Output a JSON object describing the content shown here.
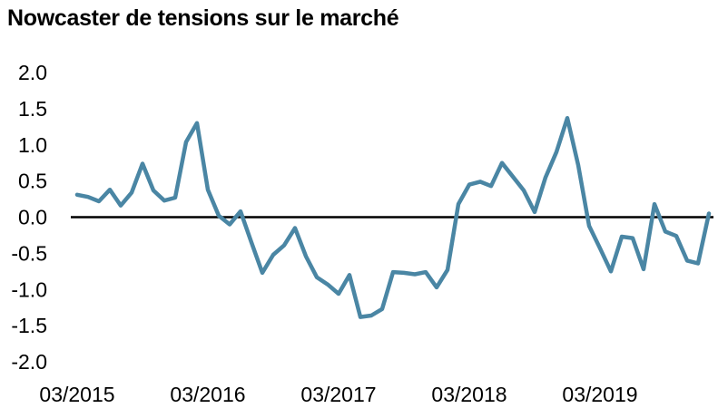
{
  "chart_data": {
    "type": "line",
    "title": "Nowcaster de tensions sur le marché",
    "xlabel": "",
    "ylabel": "",
    "ylim": [
      -2.0,
      2.0
    ],
    "y_ticks": [
      "2.0",
      "1.5",
      "1.0",
      "0.5",
      "0.0",
      "-0.5",
      "-1.0",
      "-1.5",
      "-2.0"
    ],
    "x_ticks": [
      "03/2015",
      "03/2016",
      "03/2017",
      "03/2018",
      "03/2019"
    ],
    "grid": false,
    "zero_line": true,
    "line_color": "#4a86a4",
    "series": [
      {
        "x": [
          "03/2015",
          "04/2015",
          "05/2015",
          "06/2015",
          "07/2015",
          "08/2015",
          "09/2015",
          "10/2015",
          "11/2015",
          "12/2015",
          "01/2016",
          "02/2016",
          "03/2016",
          "04/2016",
          "05/2016",
          "06/2016",
          "07/2016",
          "08/2016",
          "09/2016",
          "10/2016",
          "11/2016",
          "12/2016",
          "01/2017",
          "02/2017",
          "03/2017",
          "04/2017",
          "05/2017",
          "06/2017",
          "07/2017",
          "08/2017",
          "09/2017",
          "10/2017",
          "11/2017",
          "12/2017",
          "01/2018",
          "02/2018",
          "03/2018",
          "04/2018",
          "05/2018",
          "06/2018",
          "07/2018",
          "08/2018",
          "09/2018",
          "10/2018",
          "11/2018",
          "12/2018",
          "01/2019",
          "02/2019",
          "03/2019",
          "04/2019",
          "05/2019",
          "06/2019",
          "07/2019",
          "08/2019",
          "09/2019",
          "10/2019",
          "11/2019",
          "12/2019",
          "01/2020"
        ],
        "values": [
          0.31,
          0.28,
          0.22,
          0.38,
          0.16,
          0.34,
          0.74,
          0.37,
          0.23,
          0.27,
          1.04,
          1.3,
          0.38,
          0.02,
          -0.1,
          0.08,
          -0.35,
          -0.77,
          -0.52,
          -0.39,
          -0.15,
          -0.54,
          -0.83,
          -0.93,
          -1.06,
          -0.8,
          -1.38,
          -1.36,
          -1.27,
          -0.76,
          -0.77,
          -0.79,
          -0.76,
          -0.97,
          -0.73,
          0.18,
          0.45,
          0.49,
          0.43,
          0.75,
          0.56,
          0.37,
          0.07,
          0.55,
          0.9,
          1.37,
          0.72,
          -0.12,
          -0.43,
          -0.75,
          -0.27,
          -0.29,
          -0.72,
          0.18,
          -0.2,
          -0.26,
          -0.6,
          -0.64,
          0.05
        ]
      }
    ]
  }
}
